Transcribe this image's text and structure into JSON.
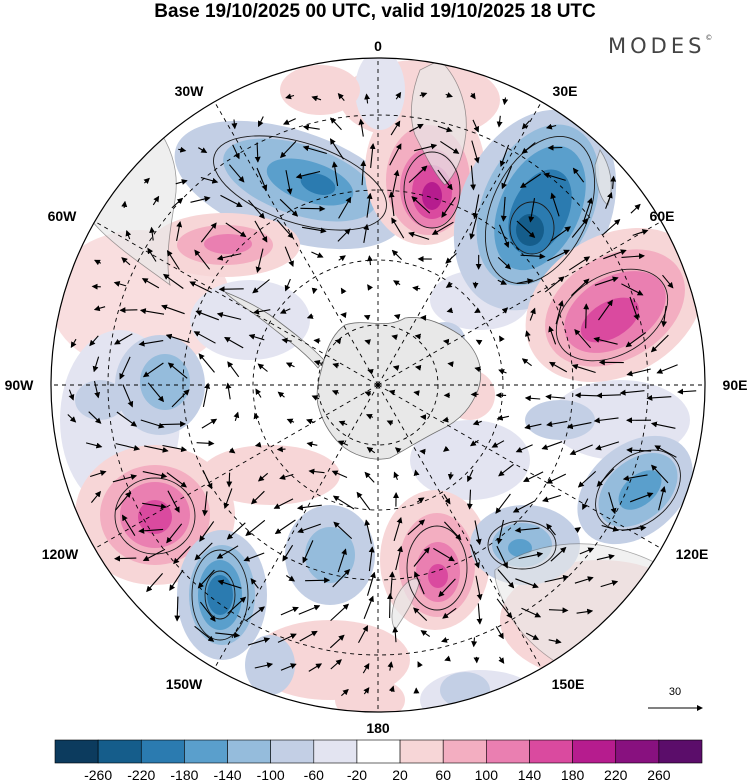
{
  "header": {
    "title": "Base 19/10/2025 00 UTC, valid 19/10/2025 18 UTC",
    "brand": "MODES",
    "brand_mark": "©"
  },
  "map": {
    "projection": "south-polar-stereographic",
    "longitude_labels": [
      "0",
      "30E",
      "60E",
      "90E",
      "120E",
      "150E",
      "180",
      "150W",
      "120W",
      "90W",
      "60W",
      "30W"
    ],
    "reference_vector": {
      "label": "30"
    }
  },
  "colorbar": {
    "ticks": [
      "-260",
      "-220",
      "-180",
      "-140",
      "-100",
      "-60",
      "-20",
      "20",
      "60",
      "100",
      "140",
      "180",
      "220",
      "260"
    ],
    "colors": [
      "#0c3b5e",
      "#155d8b",
      "#2b7bb0",
      "#5a9fcc",
      "#95bcdc",
      "#c3cfe5",
      "#e3e4f1",
      "#ffffff",
      "#f7d6d7",
      "#f3aec1",
      "#ea7fb1",
      "#da4a9f",
      "#b61c8e",
      "#88117f",
      "#5b0d6a"
    ]
  },
  "colors": {
    "land": "#e8e8e8",
    "coast": "#707070",
    "grid": "#000000"
  }
}
